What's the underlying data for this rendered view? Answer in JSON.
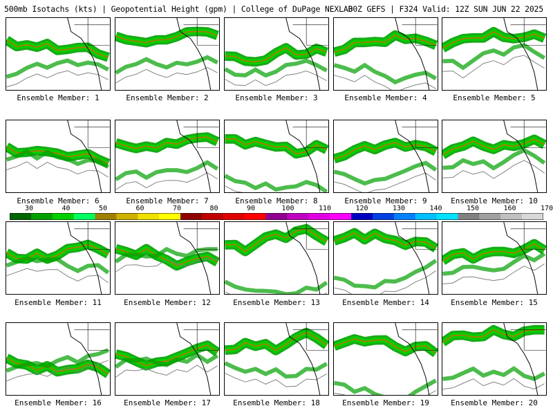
{
  "header": {
    "left": "500mb Isotachs (kts) | Geopotential Height (gpm) | College of DuPage NEXLAB",
    "right": "00Z GEFS | F324 Valid: 12Z SUN JUN 22 2025"
  },
  "members": [
    "Ensemble Member: 1",
    "Ensemble Member: 2",
    "Ensemble Member: 3",
    "Ensemble Member: 4",
    "Ensemble Member: 5",
    "Ensemble Member: 6",
    "Ensemble Member: 7",
    "Ensemble Member: 8",
    "Ensemble Member: 9",
    "Ensemble Member: 10",
    "Ensemble Member: 11",
    "Ensemble Member: 12",
    "Ensemble Member: 13",
    "Ensemble Member: 14",
    "Ensemble Member: 15",
    "Ensemble Member: 16",
    "Ensemble Member: 17",
    "Ensemble Member: 18",
    "Ensemble Member: 19",
    "Ensemble Member: 20"
  ],
  "colorbar": {
    "labels": [
      "30",
      "40",
      "50",
      "60",
      "70",
      "80",
      "90",
      "100",
      "110",
      "120",
      "130",
      "140",
      "150",
      "160",
      "170"
    ],
    "colors": [
      "#006400",
      "#00a000",
      "#00d000",
      "#00ff60",
      "#a08000",
      "#d0b000",
      "#f0e000",
      "#ffff00",
      "#900000",
      "#c00000",
      "#e00000",
      "#ff0000",
      "#900090",
      "#c000c0",
      "#e000e0",
      "#ff00ff",
      "#0000c0",
      "#0040e0",
      "#0080ff",
      "#00c0ff",
      "#00e0ff",
      "#808080",
      "#a0a0a0",
      "#c0c0c0",
      "#d8d8d8"
    ]
  }
}
